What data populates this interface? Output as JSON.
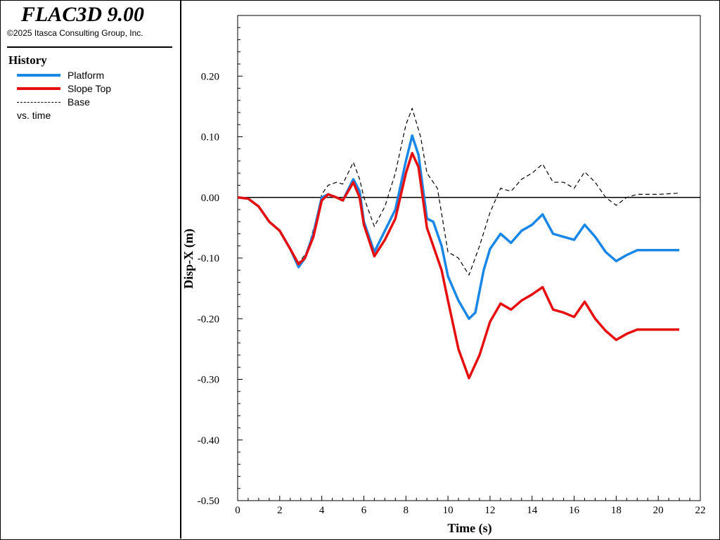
{
  "app": {
    "title": "FLAC3D 9.00",
    "copyright": "©2025 Itasca Consulting Group, Inc."
  },
  "legend": {
    "heading": "History",
    "items": [
      {
        "label": "Platform",
        "color": "#1a87e6",
        "style": "solid"
      },
      {
        "label": "Slope Top",
        "color": "#e60f0f",
        "style": "solid"
      },
      {
        "label": "Base",
        "color": "#000000",
        "style": "dashed"
      }
    ],
    "footer": "vs. time"
  },
  "chart_data": {
    "type": "line",
    "xlabel": "Time (s)",
    "ylabel": "Disp-X (m)",
    "xlim": [
      0,
      22
    ],
    "ylim": [
      -0.5,
      0.3
    ],
    "xticks": [
      0,
      2,
      4,
      6,
      8,
      10,
      12,
      14,
      16,
      18,
      20,
      22
    ],
    "yticks": [
      -0.5,
      -0.4,
      -0.3,
      -0.2,
      -0.1,
      0.0,
      0.1,
      0.2
    ],
    "ytick_labels": [
      "-0.50",
      "-0.40",
      "-0.30",
      "-0.20",
      "-0.10",
      "0.00",
      "0.10",
      "0.20"
    ],
    "zero_line": true,
    "grid": false,
    "series": [
      {
        "name": "Base",
        "color": "#000000",
        "dash": true,
        "points": [
          [
            0,
            0
          ],
          [
            0.5,
            -0.002
          ],
          [
            1,
            -0.015
          ],
          [
            1.5,
            -0.04
          ],
          [
            2,
            -0.055
          ],
          [
            2.5,
            -0.085
          ],
          [
            2.9,
            -0.108
          ],
          [
            3.3,
            -0.09
          ],
          [
            3.7,
            -0.04
          ],
          [
            4,
            0.005
          ],
          [
            4.3,
            0.02
          ],
          [
            4.7,
            0.025
          ],
          [
            5,
            0.022
          ],
          [
            5.5,
            0.058
          ],
          [
            5.8,
            0.03
          ],
          [
            6,
            0.0
          ],
          [
            6.5,
            -0.048
          ],
          [
            7,
            -0.015
          ],
          [
            7.5,
            0.04
          ],
          [
            8,
            0.12
          ],
          [
            8.3,
            0.147
          ],
          [
            8.7,
            0.1
          ],
          [
            9,
            0.04
          ],
          [
            9.5,
            0.015
          ],
          [
            10,
            -0.09
          ],
          [
            10.5,
            -0.1
          ],
          [
            11,
            -0.128
          ],
          [
            11.5,
            -0.08
          ],
          [
            12,
            -0.025
          ],
          [
            12.5,
            0.015
          ],
          [
            13,
            0.01
          ],
          [
            13.5,
            0.03
          ],
          [
            14,
            0.04
          ],
          [
            14.5,
            0.055
          ],
          [
            15,
            0.025
          ],
          [
            15.5,
            0.025
          ],
          [
            16,
            0.015
          ],
          [
            16.5,
            0.042
          ],
          [
            17,
            0.025
          ],
          [
            17.5,
            0.0
          ],
          [
            18,
            -0.013
          ],
          [
            18.5,
            0.0
          ],
          [
            19,
            0.005
          ],
          [
            20,
            0.005
          ],
          [
            21,
            0.007
          ]
        ]
      },
      {
        "name": "Platform",
        "color": "#1a87e6",
        "dash": false,
        "points": [
          [
            0,
            0
          ],
          [
            0.5,
            -0.002
          ],
          [
            1,
            -0.015
          ],
          [
            1.5,
            -0.04
          ],
          [
            2,
            -0.055
          ],
          [
            2.5,
            -0.085
          ],
          [
            2.9,
            -0.115
          ],
          [
            3.2,
            -0.1
          ],
          [
            3.6,
            -0.06
          ],
          [
            4,
            0.0
          ],
          [
            4.3,
            0.005
          ],
          [
            4.7,
            0.0
          ],
          [
            5,
            -0.005
          ],
          [
            5.5,
            0.03
          ],
          [
            5.8,
            0.01
          ],
          [
            6,
            -0.04
          ],
          [
            6.5,
            -0.09
          ],
          [
            7,
            -0.055
          ],
          [
            7.5,
            -0.02
          ],
          [
            8,
            0.06
          ],
          [
            8.3,
            0.102
          ],
          [
            8.6,
            0.07
          ],
          [
            9,
            -0.035
          ],
          [
            9.3,
            -0.04
          ],
          [
            9.7,
            -0.08
          ],
          [
            10,
            -0.13
          ],
          [
            10.5,
            -0.17
          ],
          [
            11,
            -0.2
          ],
          [
            11.3,
            -0.19
          ],
          [
            11.7,
            -0.12
          ],
          [
            12,
            -0.085
          ],
          [
            12.5,
            -0.06
          ],
          [
            13,
            -0.075
          ],
          [
            13.5,
            -0.055
          ],
          [
            14,
            -0.045
          ],
          [
            14.5,
            -0.028
          ],
          [
            15,
            -0.06
          ],
          [
            15.5,
            -0.065
          ],
          [
            16,
            -0.07
          ],
          [
            16.5,
            -0.045
          ],
          [
            17,
            -0.065
          ],
          [
            17.5,
            -0.09
          ],
          [
            18,
            -0.105
          ],
          [
            18.5,
            -0.095
          ],
          [
            19,
            -0.087
          ],
          [
            20,
            -0.087
          ],
          [
            21,
            -0.087
          ]
        ]
      },
      {
        "name": "Slope Top",
        "color": "#e60f0f",
        "dash": false,
        "points": [
          [
            0,
            0
          ],
          [
            0.5,
            -0.002
          ],
          [
            1,
            -0.015
          ],
          [
            1.5,
            -0.04
          ],
          [
            2,
            -0.055
          ],
          [
            2.5,
            -0.085
          ],
          [
            2.9,
            -0.11
          ],
          [
            3.2,
            -0.1
          ],
          [
            3.6,
            -0.065
          ],
          [
            4,
            -0.005
          ],
          [
            4.3,
            0.005
          ],
          [
            4.7,
            0.0
          ],
          [
            5,
            -0.005
          ],
          [
            5.5,
            0.025
          ],
          [
            5.8,
            0.0
          ],
          [
            6,
            -0.045
          ],
          [
            6.5,
            -0.097
          ],
          [
            7,
            -0.07
          ],
          [
            7.5,
            -0.035
          ],
          [
            8,
            0.04
          ],
          [
            8.3,
            0.073
          ],
          [
            8.6,
            0.05
          ],
          [
            9,
            -0.05
          ],
          [
            9.3,
            -0.08
          ],
          [
            9.7,
            -0.12
          ],
          [
            10,
            -0.17
          ],
          [
            10.5,
            -0.25
          ],
          [
            11,
            -0.298
          ],
          [
            11.5,
            -0.26
          ],
          [
            12,
            -0.205
          ],
          [
            12.5,
            -0.175
          ],
          [
            13,
            -0.185
          ],
          [
            13.5,
            -0.17
          ],
          [
            14,
            -0.16
          ],
          [
            14.5,
            -0.148
          ],
          [
            15,
            -0.185
          ],
          [
            15.5,
            -0.19
          ],
          [
            16,
            -0.197
          ],
          [
            16.5,
            -0.172
          ],
          [
            17,
            -0.2
          ],
          [
            17.5,
            -0.22
          ],
          [
            18,
            -0.235
          ],
          [
            18.5,
            -0.225
          ],
          [
            19,
            -0.218
          ],
          [
            20,
            -0.218
          ],
          [
            21,
            -0.218
          ]
        ]
      }
    ]
  }
}
